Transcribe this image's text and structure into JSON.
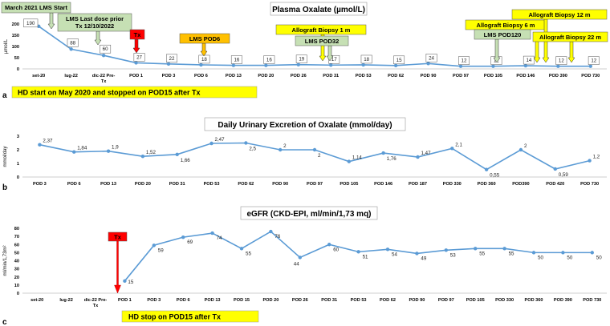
{
  "chart_data": [
    {
      "type": "line",
      "panel": "a",
      "title": "Plasma Oxalate (µmol/L)",
      "ylabel": "µmol/L",
      "ylim": [
        0,
        200
      ],
      "yticks": [
        0,
        50,
        100,
        150,
        200
      ],
      "categories": [
        "set-20",
        "lug-22",
        "dic-22 Pre-Tx",
        "POD 1",
        "POD 3",
        "POD 6",
        "POD 13",
        "POD 20",
        "POD 26",
        "POD 31",
        "POD 53",
        "POD 62",
        "POD 90",
        "POD 97",
        "POD 105",
        "POD 146",
        "POD 390",
        "POD 730"
      ],
      "values": [
        190,
        88,
        60,
        27,
        22,
        18,
        16,
        16,
        19,
        17,
        18,
        15,
        24,
        12,
        12,
        14,
        12,
        12
      ],
      "labels": [
        "190",
        "88",
        "60",
        "27",
        "22",
        "18",
        "16",
        "16",
        "19",
        "17",
        "18",
        "15",
        "24",
        "12",
        "12",
        "14",
        "12",
        "12"
      ],
      "annotations": [
        {
          "text": "March 2021 LMS Start",
          "color": "#c6e0b4",
          "target": 0
        },
        {
          "text": "LMS Last dose prior Tx 12/10/2022",
          "color": "#c6e0b4",
          "target": 2
        },
        {
          "text": "Tx",
          "color": "#ff0000",
          "target": 3
        },
        {
          "text": "LMS POD6",
          "color": "#ffc000",
          "target": 5
        },
        {
          "text": "Allograft Biopsy 1 m",
          "color": "#ffff00",
          "target": 9
        },
        {
          "text": "LMS POD32",
          "color": "#c6e0b4",
          "target": 9
        },
        {
          "text": "Allograft Biopsy 6 m",
          "color": "#ffff00",
          "target": 16
        },
        {
          "text": "LMS POD120",
          "color": "#c6e0b4",
          "target": 14
        },
        {
          "text": "Allograft Biopsy 12 m",
          "color": "#ffff00",
          "target": 16
        },
        {
          "text": "Allograft Biopsy 22 m",
          "color": "#ffff00",
          "target": 17
        }
      ],
      "footnote": "HD start on May 2020 and stopped on POD15 after Tx"
    },
    {
      "type": "line",
      "panel": "b",
      "title": "Daily Urinary Excretion of Oxalate (mmol/day)",
      "ylabel": "mmol/day",
      "ylim": [
        0,
        3
      ],
      "yticks": [
        0,
        1,
        2,
        3
      ],
      "categories": [
        "POD 3",
        "POD 6",
        "POD 13",
        "POD 20",
        "POD 31",
        "POD 53",
        "POD 62",
        "POD 90",
        "POD 97",
        "POD 105",
        "POD 146",
        "POD 187",
        "POD 330",
        "POD 360",
        "POD390",
        "POD 420",
        "POD 730"
      ],
      "values": [
        2.37,
        1.84,
        1.9,
        1.52,
        1.66,
        2.47,
        2.5,
        2,
        2,
        1.14,
        1.76,
        1.47,
        2.1,
        0.55,
        2,
        0.59,
        1.2
      ],
      "labels": [
        "2,37",
        "1,84",
        "1,9",
        "1,52",
        "1,66",
        "2,47",
        "2,5",
        "2",
        "2",
        "1,14",
        "1,76",
        "1,47",
        "2,1",
        "0,55",
        "2",
        "0,59",
        "1,2"
      ]
    },
    {
      "type": "line",
      "panel": "c",
      "title": "eGFR (CKD-EPI, ml/min/1,73 mq)",
      "ylabel": "ml/min/1,73m²",
      "ylim": [
        0,
        80
      ],
      "yticks": [
        0,
        10,
        20,
        30,
        40,
        50,
        60,
        70,
        80
      ],
      "categories": [
        "set-20",
        "lug-22",
        "dic-22 Pre-Tx",
        "POD 1",
        "POD 3",
        "POD 6",
        "POD 13",
        "POD 15",
        "POD 20",
        "POD 26",
        "POD 31",
        "POD 53",
        "POD 62",
        "POD 90",
        "POD 97",
        "POD 105",
        "POD 330",
        "POD 360",
        "POD 390",
        "POD 730"
      ],
      "start_index": 3,
      "values": [
        15,
        59,
        69,
        74,
        55,
        76,
        44,
        60,
        51,
        54,
        49,
        53,
        55,
        55,
        50,
        50,
        50
      ],
      "labels": [
        "15",
        "59",
        "69",
        "74",
        "55",
        "76",
        "44",
        "60",
        "51",
        "54",
        "49",
        "53",
        "55",
        "55",
        "50",
        "50",
        "50"
      ],
      "annotations": [
        {
          "text": "Tx",
          "color": "#ff0000",
          "target": 3
        }
      ],
      "footnote": "HD stop on POD15 after Tx"
    }
  ]
}
